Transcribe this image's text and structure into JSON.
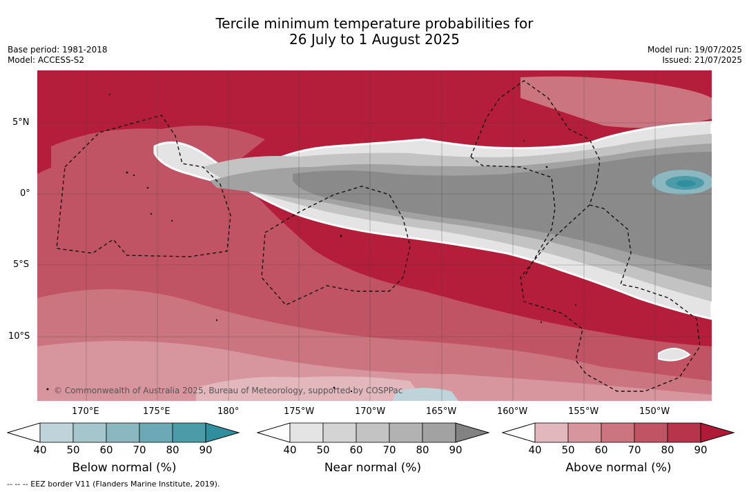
{
  "title": {
    "line1": "Tercile minimum temperature probabilities for",
    "line2": "26 July to 1 August 2025"
  },
  "meta": {
    "base_period": "Base period: 1981-2018",
    "model": "Model: ACCESS-S2",
    "model_run": "Model run: 19/07/2025",
    "issued": "Issued: 21/07/2025"
  },
  "map": {
    "lat_labels": [
      "5°N",
      "0°",
      "5°S",
      "10°S"
    ],
    "lon_labels": [
      "170°E",
      "175°E",
      "180°",
      "175°W",
      "170°W",
      "165°W",
      "160°W",
      "155°W",
      "150°W"
    ],
    "copyright": "© Commonwealth of Australia 2025, Bureau of Meteorology, supported by COSPPac",
    "colors": {
      "above_dominant": "#b51e3a",
      "near_dominant": "#8a8a8a",
      "below_dominant": "#3a9aab"
    }
  },
  "colorbars": [
    {
      "id": "below",
      "label": "Below normal (%)",
      "ticks": [
        "40",
        "50",
        "60",
        "70",
        "80",
        "90"
      ],
      "colors": [
        "#bfd3da",
        "#a6c6cd",
        "#8ab7c0",
        "#6aa9b5",
        "#4c9ba9",
        "#2f8f9f"
      ]
    },
    {
      "id": "near",
      "label": "Near normal (%)",
      "ticks": [
        "40",
        "50",
        "60",
        "70",
        "80",
        "90"
      ],
      "colors": [
        "#e4e4e4",
        "#d4d4d4",
        "#c3c3c3",
        "#b2b2b2",
        "#a2a2a2",
        "#828282"
      ]
    },
    {
      "id": "above",
      "label": "Above normal (%)",
      "ticks": [
        "40",
        "50",
        "60",
        "70",
        "80",
        "90"
      ],
      "colors": [
        "#e2b8bd",
        "#d7959d",
        "#cb7580",
        "#c05465",
        "#b7344a",
        "#ae1a38"
      ]
    }
  ],
  "footnote": "--  --  -- EEZ border V11 (Flanders Marine Institute, 2019)."
}
